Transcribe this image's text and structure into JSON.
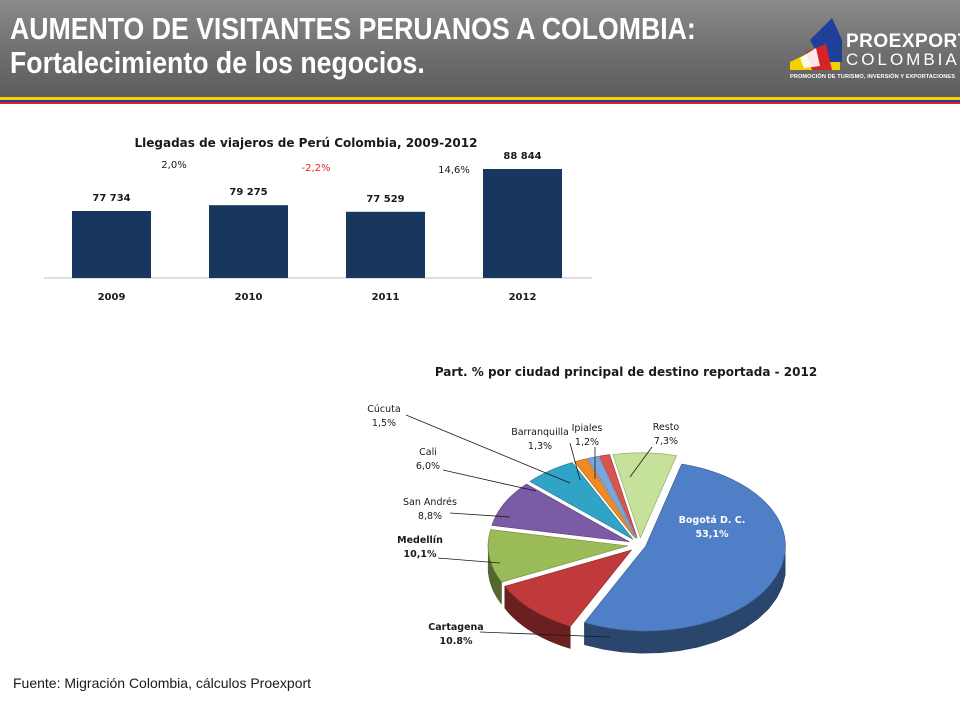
{
  "header": {
    "title_line1": "AUMENTO DE VISITANTES PERUANOS A COLOMBIA:",
    "title_line2": "Fortalecimiento de los negocios.",
    "logo_name": "PROEXPORT",
    "logo_country": "COLOMBIA",
    "logo_tagline": "PROMOCIÓN DE TURISMO, INVERSIÓN Y EXPORTACIONES"
  },
  "colors": {
    "bar": "#17375e",
    "negative_growth": "#e8262a",
    "stripe_yellow": "#f5d100",
    "stripe_blue": "#1f3f99",
    "stripe_red": "#d6232a"
  },
  "chart_data": [
    {
      "type": "bar",
      "title": "Llegadas de viajeros de Perú Colombia, 2009-2012",
      "categories": [
        "2009",
        "2010",
        "2011",
        "2012"
      ],
      "values": [
        77734,
        79275,
        77529,
        88844
      ],
      "value_labels": [
        "77 734",
        "79 275",
        "77 529",
        "88 844"
      ],
      "growth_labels": [
        "2,0%",
        "-2,2%",
        "14,6%"
      ],
      "xlabel": "",
      "ylabel": "",
      "color": "#17375e",
      "grid": false
    },
    {
      "type": "pie",
      "title": "Part. % por ciudad principal de destino reportada - 2012",
      "slices": [
        {
          "label": "Bogotá D. C.",
          "value": 53.1,
          "value_label": "53,1%",
          "color": "#4f7fc7"
        },
        {
          "label": "Cartagena",
          "value": 10.8,
          "value_label": "10.8%",
          "color": "#c0393b"
        },
        {
          "label": "Medellín",
          "value": 10.1,
          "value_label": "10,1%",
          "color": "#9bbb59"
        },
        {
          "label": "San Andrés",
          "value": 8.8,
          "value_label": "8,8%",
          "color": "#7b5aa6"
        },
        {
          "label": "Cali",
          "value": 6.0,
          "value_label": "6,0%",
          "color": "#2fa4c7"
        },
        {
          "label": "Cúcuta",
          "value": 1.5,
          "value_label": "1,5%",
          "color": "#f08a24"
        },
        {
          "label": "Barranquilla",
          "value": 1.3,
          "value_label": "1,3%",
          "color": "#7aa6dc"
        },
        {
          "label": "Ipiales",
          "value": 1.2,
          "value_label": "1,2%",
          "color": "#d9534f"
        },
        {
          "label": "Resto",
          "value": 7.3,
          "value_label": "7,3%",
          "color": "#c6e19a"
        }
      ],
      "style": "3d-exploded"
    }
  ],
  "footer": {
    "source": "Fuente: Migración Colombia, cálculos Proexport"
  }
}
